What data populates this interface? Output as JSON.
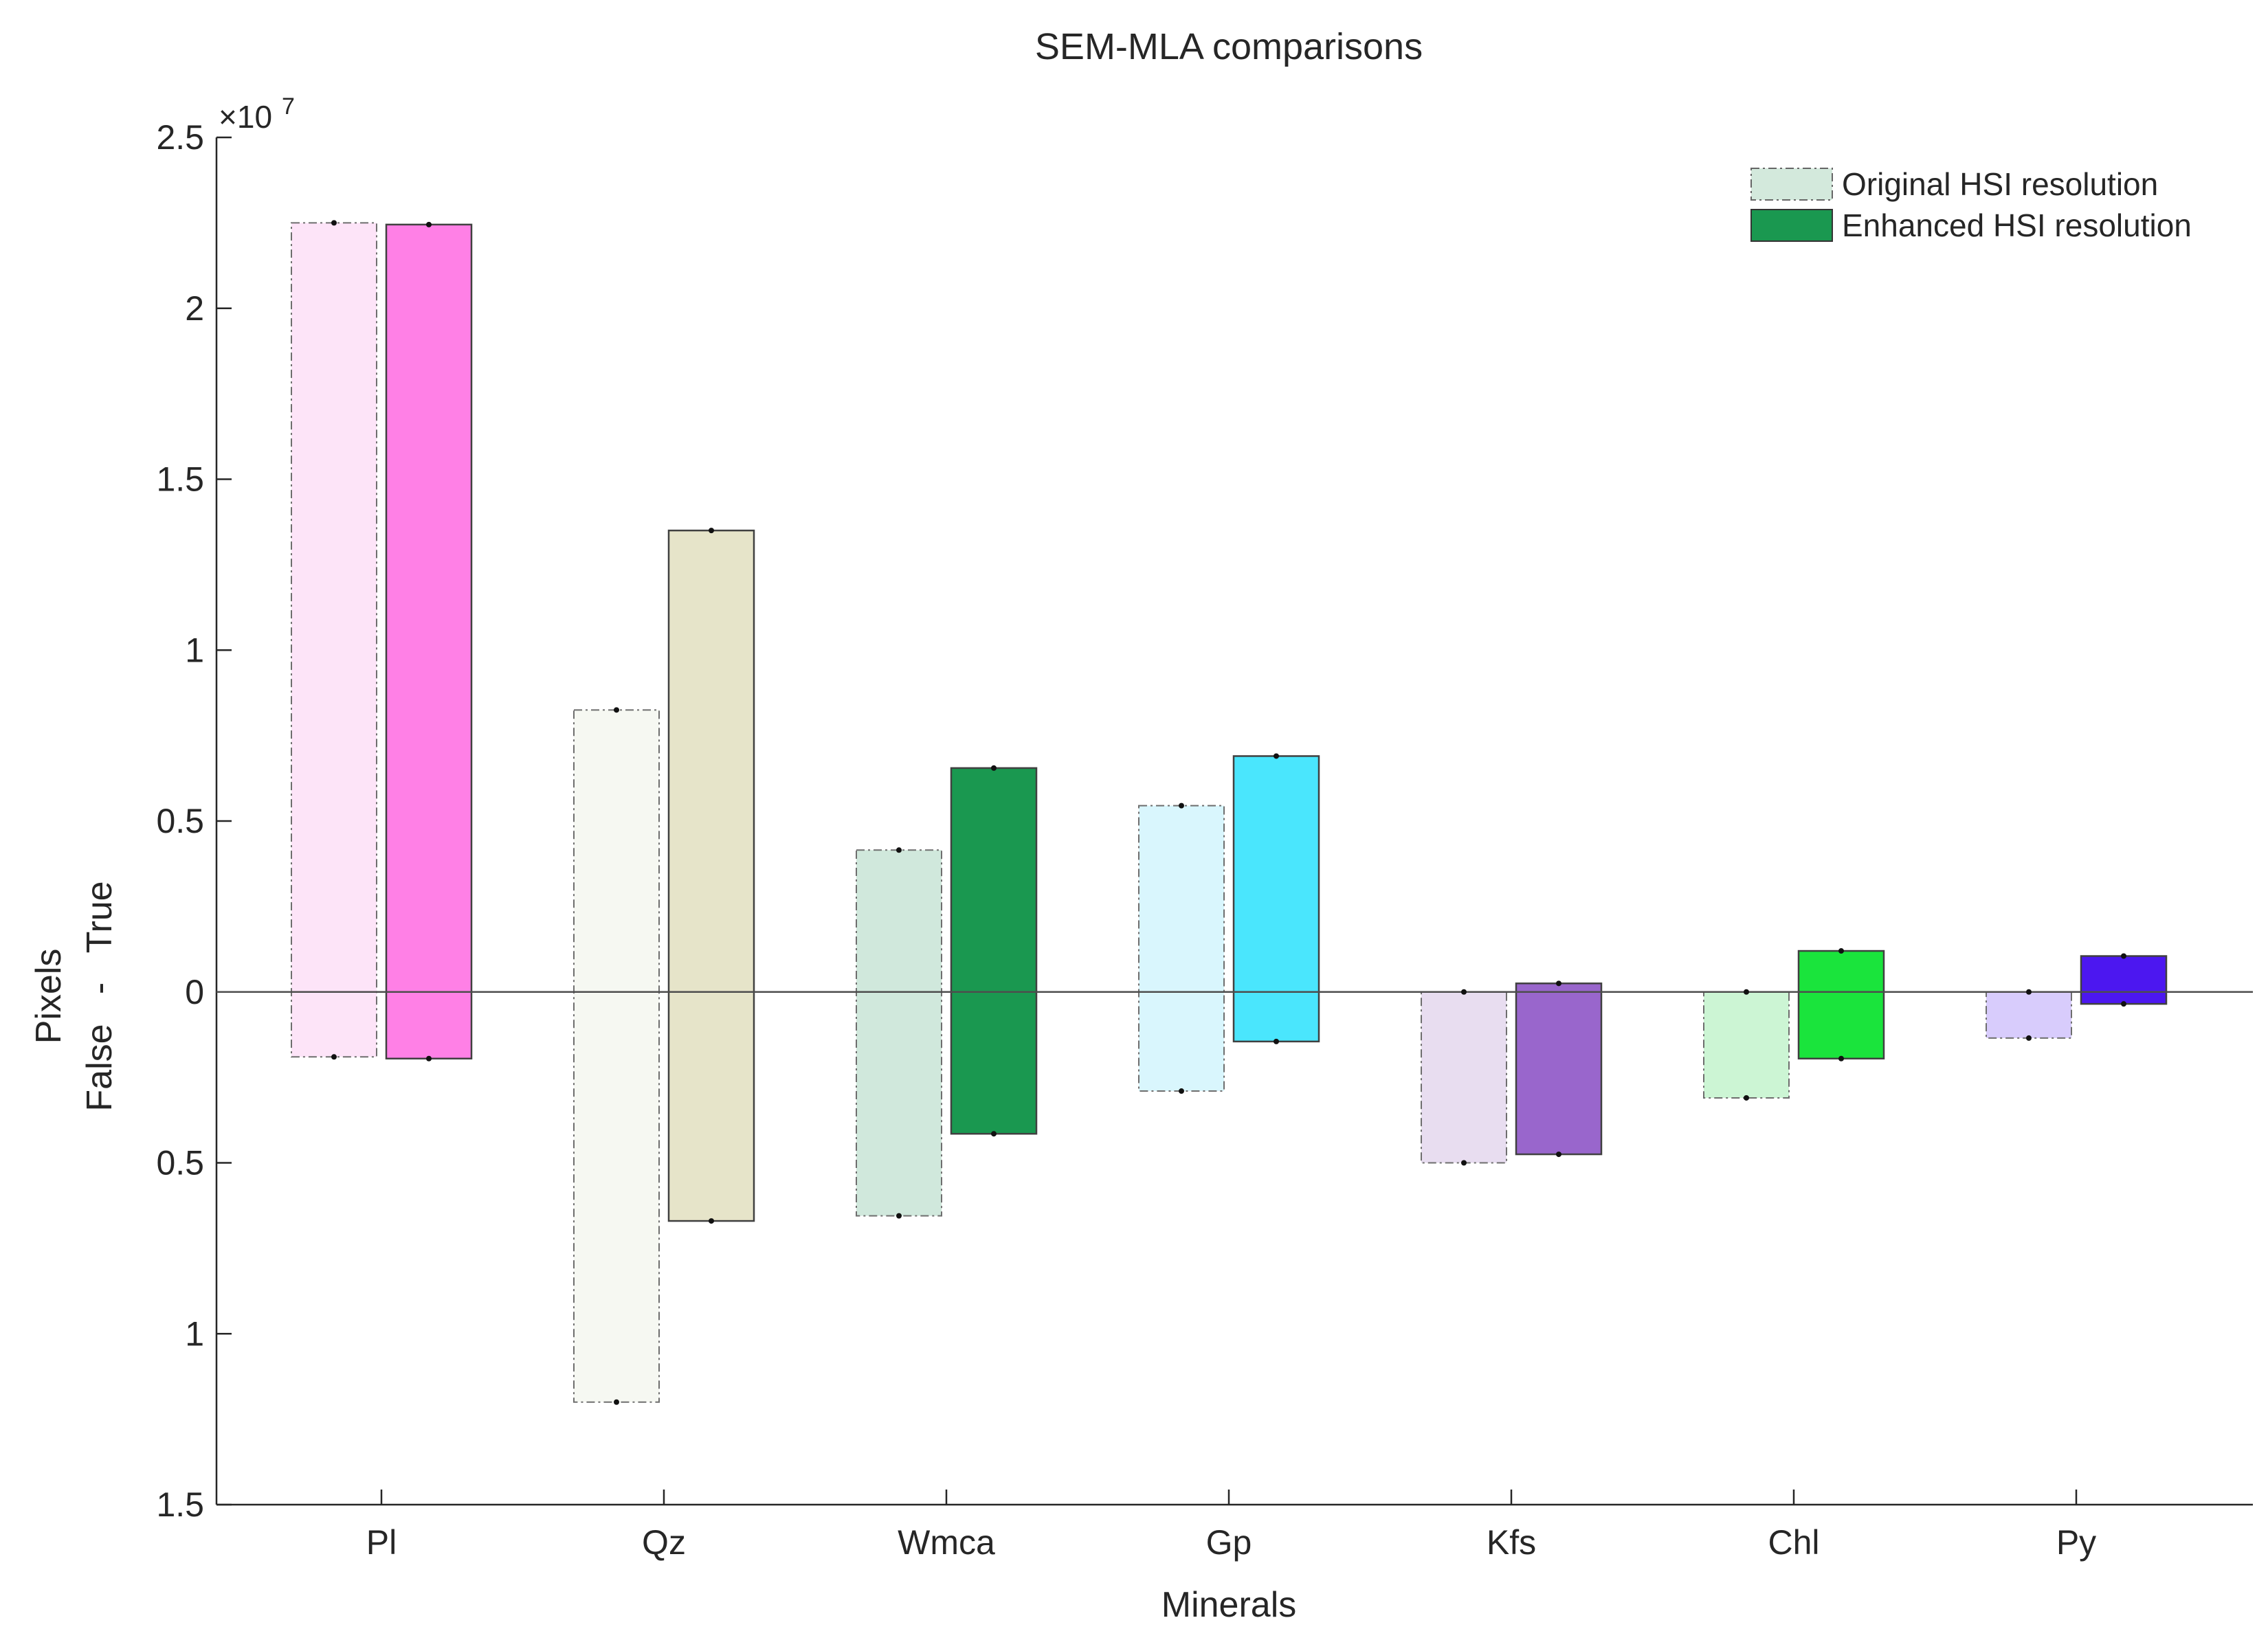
{
  "chart_data": {
    "type": "bar",
    "title": "SEM-MLA comparisons",
    "xlabel": "Minerals",
    "ylabel": "Pixels",
    "ylabel_sub": "False   -   True",
    "y_exponent": "×10",
    "y_exponent_power": "7",
    "ylim": [
      -1.5,
      2.5
    ],
    "yticks": [
      {
        "value": 2.5,
        "label": "2.5"
      },
      {
        "value": 2,
        "label": "2"
      },
      {
        "value": 1.5,
        "label": "1.5"
      },
      {
        "value": 1,
        "label": "1"
      },
      {
        "value": 0.5,
        "label": "0.5"
      },
      {
        "value": 0,
        "label": "0"
      },
      {
        "value": -0.5,
        "label": "0.5"
      },
      {
        "value": -1,
        "label": "1"
      },
      {
        "value": -1.5,
        "label": "1.5"
      }
    ],
    "categories": [
      "Pl",
      "Qz",
      "Wmca",
      "Gp",
      "Kfs",
      "Chl",
      "Py"
    ],
    "legend": {
      "position": "top-right",
      "original_label": "Original HSI resolution",
      "enhanced_label": "Enhanced HSI resolution",
      "original_color": "#d3e9dc",
      "enhanced_color": "#1a9850"
    },
    "series": [
      {
        "name": "Original HSI resolution",
        "style": "dash-dot",
        "true_values": [
          2.25,
          0.825,
          0.415,
          0.545,
          0.0,
          0.0,
          0.0
        ],
        "false_values": [
          -0.19,
          -1.2,
          -0.655,
          -0.29,
          -0.5,
          -0.31,
          -0.135
        ],
        "colors": [
          "#fde4f8",
          "#f6f8f2",
          "#d0e8dc",
          "#d9f6fd",
          "#e8ddf0",
          "#ccf5d4",
          "#d8ccfc"
        ]
      },
      {
        "name": "Enhanced HSI resolution",
        "style": "solid",
        "true_values": [
          2.245,
          1.35,
          0.655,
          0.69,
          0.025,
          0.12,
          0.105
        ],
        "false_values": [
          -0.195,
          -0.67,
          -0.415,
          -0.145,
          -0.475,
          -0.195,
          -0.035
        ],
        "colors": [
          "#ff80e6",
          "#e6e4c9",
          "#1a9850",
          "#4ae6fd",
          "#9966cc",
          "#1ae43c",
          "#4c17f0"
        ]
      }
    ]
  }
}
